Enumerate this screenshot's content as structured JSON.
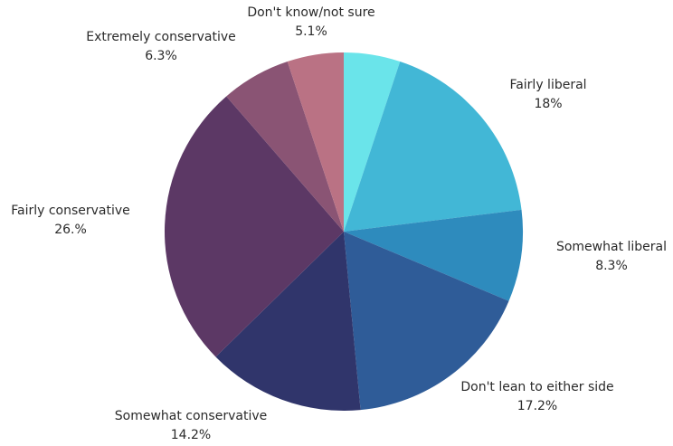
{
  "chart_data": {
    "type": "pie",
    "title": "",
    "start_angle_deg": 0,
    "direction": "clockwise",
    "slices": [
      {
        "label": "Don't know/not sure",
        "value": 5.1,
        "display": "5.1%",
        "color": "#ba7284"
      },
      {
        "label": "Fairly liberal",
        "value": 18,
        "display": "18%",
        "color": "#42b7d6"
      },
      {
        "label": "Somewhat liberal",
        "value": 8.3,
        "display": "8.3%",
        "color": "#2e8bbd"
      },
      {
        "label": "Don't lean to either side",
        "value": 17.2,
        "display": "17.2%",
        "color": "#2f5c98"
      },
      {
        "label": "Somewhat conservative",
        "value": 14.2,
        "display": "14.2%",
        "color": "#30356b"
      },
      {
        "label": "Fairly conservative",
        "value": 26,
        "display": "26.%",
        "color": "#5c3865"
      },
      {
        "label": "Extremely conservative",
        "value": 6.3,
        "display": "6.3%",
        "color": "#8a5474"
      }
    ],
    "first_slice": {
      "label": "",
      "value": 5.1,
      "color": "#6ae4ea"
    }
  }
}
